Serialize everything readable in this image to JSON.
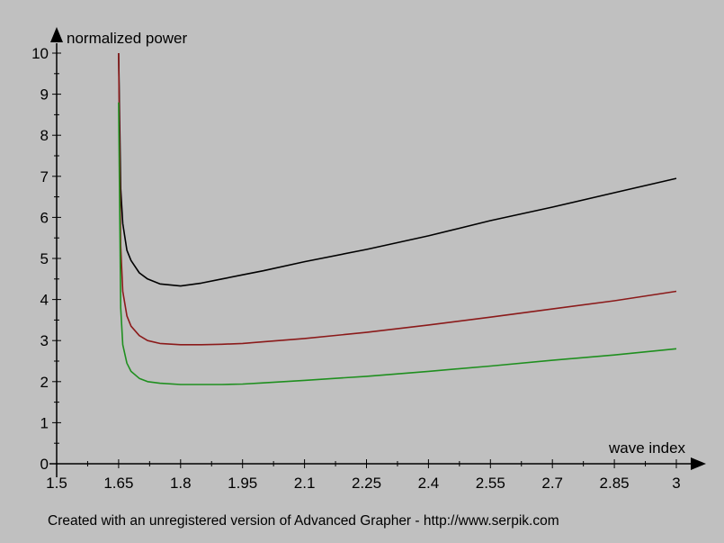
{
  "chart_data": {
    "type": "line",
    "title": "",
    "xlabel": "wave index",
    "ylabel": "normalized power",
    "xlim": [
      1.5,
      3
    ],
    "ylim": [
      0,
      10
    ],
    "x_ticks": [
      "1.5",
      "1.65",
      "1.8",
      "1.95",
      "2.1",
      "2.25",
      "2.4",
      "2.55",
      "2.7",
      "2.85",
      "3"
    ],
    "y_ticks": [
      "0",
      "1",
      "2",
      "3",
      "4",
      "5",
      "6",
      "7",
      "8",
      "9",
      "10"
    ],
    "grid": false,
    "legend": "none",
    "series": [
      {
        "color": "#000000",
        "x": [
          1.65,
          1.655,
          1.66,
          1.67,
          1.68,
          1.7,
          1.72,
          1.75,
          1.8,
          1.85,
          1.9,
          1.95,
          2.0,
          2.1,
          2.25,
          2.4,
          2.55,
          2.7,
          2.85,
          3.0
        ],
        "y": [
          10.0,
          6.7,
          5.85,
          5.2,
          4.95,
          4.65,
          4.5,
          4.38,
          4.33,
          4.4,
          4.5,
          4.6,
          4.7,
          4.92,
          5.22,
          5.55,
          5.92,
          6.25,
          6.6,
          6.95
        ]
      },
      {
        "color": "#8b1a1a",
        "x": [
          1.65,
          1.655,
          1.66,
          1.67,
          1.68,
          1.7,
          1.72,
          1.75,
          1.8,
          1.85,
          1.9,
          1.95,
          2.0,
          2.1,
          2.25,
          2.4,
          2.55,
          2.7,
          2.85,
          3.0
        ],
        "y": [
          10.0,
          5.3,
          4.2,
          3.6,
          3.35,
          3.12,
          3.0,
          2.93,
          2.9,
          2.9,
          2.91,
          2.93,
          2.97,
          3.05,
          3.2,
          3.38,
          3.57,
          3.77,
          3.97,
          4.2
        ]
      },
      {
        "color": "#1f8f1f",
        "x": [
          1.65,
          1.655,
          1.66,
          1.67,
          1.68,
          1.7,
          1.72,
          1.75,
          1.8,
          1.85,
          1.9,
          1.95,
          2.0,
          2.1,
          2.25,
          2.4,
          2.55,
          2.7,
          2.85,
          3.0
        ],
        "y": [
          8.8,
          3.8,
          2.9,
          2.45,
          2.25,
          2.08,
          2.0,
          1.96,
          1.93,
          1.93,
          1.93,
          1.94,
          1.97,
          2.03,
          2.13,
          2.25,
          2.38,
          2.52,
          2.65,
          2.8
        ]
      }
    ]
  },
  "footer_text": "Created with an unregistered version of Advanced Grapher - http://www.serpik.com"
}
